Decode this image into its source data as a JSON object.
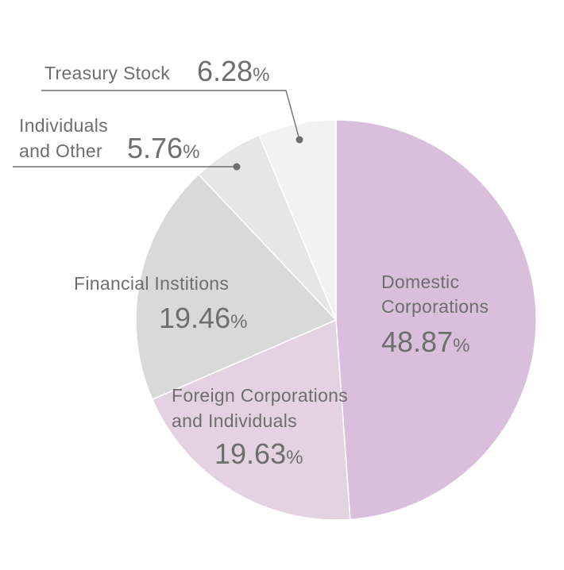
{
  "chart_data": {
    "type": "pie",
    "title": "",
    "start_angle_deg": 0,
    "direction": "clockwise",
    "slices": [
      {
        "label_lines": [
          "Domestic",
          "Corporations"
        ],
        "value": 48.87,
        "value_text": "48.87",
        "unit": "%",
        "color": "#d9bfdb"
      },
      {
        "label_lines": [
          "Foreign Corporations",
          "and Individuals"
        ],
        "value": 19.63,
        "value_text": "19.63",
        "unit": "%",
        "color": "#e3d3e2"
      },
      {
        "label_lines": [
          "Financial Institions"
        ],
        "value": 19.46,
        "value_text": "19.46",
        "unit": "%",
        "color": "#d9d9d9"
      },
      {
        "label_lines": [
          "Individuals",
          "and Other"
        ],
        "value": 5.76,
        "value_text": "5.76",
        "unit": "%",
        "color": "#e6e6e6"
      },
      {
        "label_lines": [
          "Treasury Stock"
        ],
        "value": 6.28,
        "value_text": "6.28",
        "unit": "%",
        "color": "#f2f2f2"
      }
    ],
    "text_color": "#6e6e6e",
    "slice_border_color": "#ffffff"
  }
}
